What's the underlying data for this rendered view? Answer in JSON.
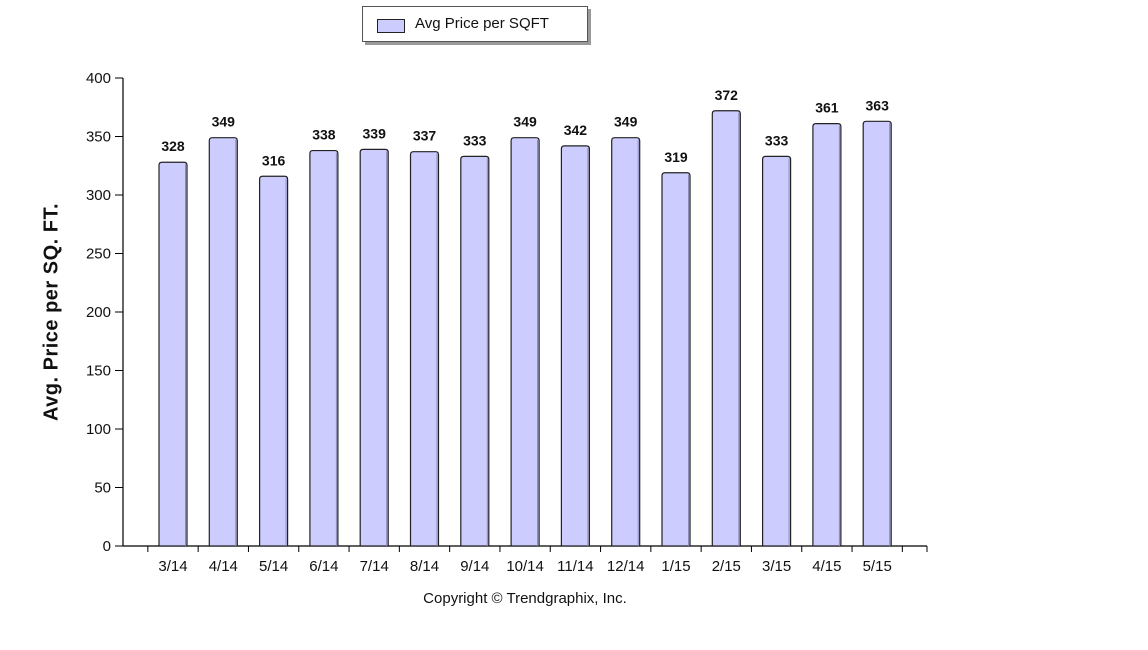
{
  "legend": {
    "label": "Avg Price per SQFT"
  },
  "copyright": "Copyright © Trendgraphix, Inc.",
  "colors": {
    "bar_fill": "#ccccff",
    "bar_stroke": "#222222",
    "axis": "#000000"
  },
  "chart_data": {
    "type": "bar",
    "title": "",
    "xlabel": "",
    "ylabel": "Avg. Price per SQ. FT.",
    "categories": [
      "3/14",
      "4/14",
      "5/14",
      "6/14",
      "7/14",
      "8/14",
      "9/14",
      "10/14",
      "11/14",
      "12/14",
      "1/15",
      "2/15",
      "3/15",
      "4/15",
      "5/15"
    ],
    "series": [
      {
        "name": "Avg Price per SQFT",
        "values": [
          328,
          349,
          316,
          338,
          339,
          337,
          333,
          349,
          342,
          349,
          319,
          372,
          333,
          361,
          363
        ]
      }
    ],
    "ylim": [
      0,
      400
    ],
    "yticks": [
      0,
      50,
      100,
      150,
      200,
      250,
      300,
      350,
      400
    ],
    "grid": false,
    "legend_position": "top-center",
    "data_labels": true
  }
}
